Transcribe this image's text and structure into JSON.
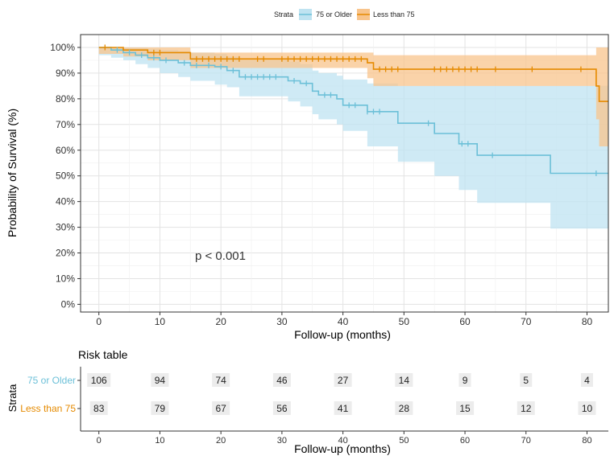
{
  "chart_data": {
    "type": "line",
    "subtype": "kaplan-meier",
    "legend": {
      "title": "Strata",
      "position": "top",
      "entries": [
        "75 or Older",
        "Less than 75"
      ]
    },
    "xlabel": "Follow-up (months)",
    "ylabel": "Probability of Survival (%)",
    "xlim": [
      -3,
      83.5
    ],
    "ylim": [
      -3,
      105
    ],
    "x_ticks": [
      0,
      10,
      20,
      30,
      40,
      50,
      60,
      70,
      80
    ],
    "y_ticks": [
      0,
      10,
      20,
      30,
      40,
      50,
      60,
      70,
      80,
      90,
      100
    ],
    "y_tick_labels": [
      "0%",
      "10%",
      "20%",
      "30%",
      "40%",
      "50%",
      "60%",
      "70%",
      "80%",
      "90%",
      "100%"
    ],
    "annotation": "p < 0.001",
    "annotation_pos": [
      20,
      17
    ],
    "series": [
      {
        "name": "75 or Older",
        "color": "#6CC0D8",
        "band_color": "#BFE3F1",
        "steps": [
          [
            0,
            100
          ],
          [
            2,
            99
          ],
          [
            4,
            98
          ],
          [
            6,
            97
          ],
          [
            8,
            96
          ],
          [
            10,
            95
          ],
          [
            13,
            94
          ],
          [
            15,
            93
          ],
          [
            19,
            92.5
          ],
          [
            21,
            91
          ],
          [
            23,
            88.5
          ],
          [
            31,
            87
          ],
          [
            33,
            86
          ],
          [
            35,
            83
          ],
          [
            36,
            81.5
          ],
          [
            39,
            80
          ],
          [
            40,
            77.5
          ],
          [
            44,
            75
          ],
          [
            49,
            70.5
          ],
          [
            55,
            66.5
          ],
          [
            59,
            62.5
          ],
          [
            62,
            58
          ],
          [
            74,
            51
          ],
          [
            83.5,
            51
          ]
        ],
        "upper": [
          [
            0,
            100
          ],
          [
            2,
            100
          ],
          [
            4,
            100
          ],
          [
            6,
            100
          ],
          [
            8,
            99.5
          ],
          [
            10,
            99
          ],
          [
            13,
            98.5
          ],
          [
            15,
            98
          ],
          [
            19,
            97.5
          ],
          [
            21,
            96.5
          ],
          [
            23,
            95
          ],
          [
            31,
            94.5
          ],
          [
            33,
            93.5
          ],
          [
            35,
            91
          ],
          [
            36,
            90
          ],
          [
            39,
            89
          ],
          [
            40,
            87.5
          ],
          [
            44,
            86
          ],
          [
            49,
            85
          ],
          [
            55,
            85
          ],
          [
            59,
            85
          ],
          [
            62,
            85
          ],
          [
            74,
            85
          ],
          [
            83.5,
            85
          ]
        ],
        "lower": [
          [
            0,
            97
          ],
          [
            2,
            96
          ],
          [
            4,
            95
          ],
          [
            6,
            93.5
          ],
          [
            8,
            92
          ],
          [
            10,
            90
          ],
          [
            13,
            88.5
          ],
          [
            15,
            87
          ],
          [
            19,
            85.5
          ],
          [
            21,
            84.5
          ],
          [
            23,
            81
          ],
          [
            31,
            79
          ],
          [
            33,
            77
          ],
          [
            35,
            74
          ],
          [
            36,
            72
          ],
          [
            39,
            70
          ],
          [
            40,
            67.5
          ],
          [
            44,
            61.5
          ],
          [
            49,
            55.5
          ],
          [
            55,
            50
          ],
          [
            59,
            44.5
          ],
          [
            62,
            39.5
          ],
          [
            74,
            29.5
          ],
          [
            83.5,
            29.5
          ]
        ],
        "censor_x": [
          3,
          5,
          7,
          9,
          11,
          14,
          16,
          18,
          20,
          22,
          24,
          25,
          26,
          27,
          28,
          29,
          32,
          34,
          37,
          38,
          41,
          42,
          44,
          45,
          46,
          54,
          59.5,
          60.5,
          64.5,
          81.5
        ]
      },
      {
        "name": "Less than 75",
        "color": "#E58A00",
        "band_color": "#F8C48C",
        "steps": [
          [
            0,
            100
          ],
          [
            4,
            99
          ],
          [
            8,
            98
          ],
          [
            15,
            95.5
          ],
          [
            44,
            94
          ],
          [
            45,
            91.5
          ],
          [
            81.5,
            85
          ],
          [
            82,
            79
          ],
          [
            83.5,
            79
          ]
        ],
        "upper": [
          [
            0,
            100
          ],
          [
            4,
            100
          ],
          [
            8,
            100
          ],
          [
            15,
            98
          ],
          [
            44,
            98
          ],
          [
            45,
            97
          ],
          [
            81.5,
            100
          ],
          [
            82,
            100
          ],
          [
            83.5,
            100
          ]
        ],
        "lower": [
          [
            0,
            97.5
          ],
          [
            4,
            96.5
          ],
          [
            8,
            95
          ],
          [
            15,
            92
          ],
          [
            44,
            88
          ],
          [
            45,
            85
          ],
          [
            81.5,
            72
          ],
          [
            82,
            61.5
          ],
          [
            83.5,
            61.5
          ]
        ],
        "censor_x": [
          1,
          9,
          10,
          16,
          17,
          18,
          19,
          20,
          21,
          22,
          23,
          26,
          27,
          30,
          31,
          32,
          33,
          34,
          35,
          36,
          37,
          38,
          39,
          40,
          41,
          42,
          43,
          46,
          47,
          48,
          49,
          55,
          56,
          57,
          58,
          59,
          60,
          61,
          62,
          65,
          71,
          79
        ]
      }
    ],
    "risk_table": {
      "title": "Risk table",
      "strata_label": "Strata",
      "xlabel": "Follow-up (months)",
      "times": [
        0,
        10,
        20,
        30,
        40,
        50,
        60,
        70,
        80
      ],
      "rows": [
        {
          "name": "75 or Older",
          "color": "#6CC0D8",
          "counts": [
            106,
            94,
            74,
            46,
            27,
            14,
            9,
            5,
            4
          ]
        },
        {
          "name": "Less than 75",
          "color": "#E58A00",
          "counts": [
            83,
            79,
            67,
            56,
            41,
            28,
            15,
            12,
            10
          ]
        }
      ]
    }
  }
}
